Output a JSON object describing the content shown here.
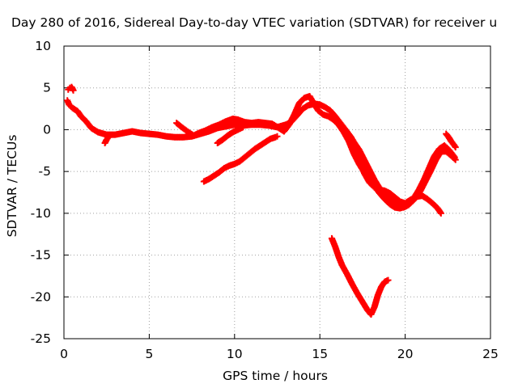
{
  "chart_data": {
    "type": "scatter",
    "title": "Day 280 of 2016, Sidereal Day-to-day VTEC variation (SDTVAR) for receiver u",
    "xlabel": "GPS time / hours",
    "ylabel": "SDTVAR / TECUs",
    "xlim": [
      0,
      25
    ],
    "ylim": [
      -25,
      10
    ],
    "grid": true,
    "xticks": [
      0,
      5,
      10,
      15,
      20,
      25
    ],
    "yticks": [
      10,
      5,
      0,
      -5,
      -10,
      -15,
      -20,
      -25
    ],
    "marker_color": "#ff0000",
    "series": [
      {
        "name": "main-track",
        "points": [
          [
            0.2,
            3.5
          ],
          [
            0.3,
            3.0
          ],
          [
            0.5,
            2.6
          ],
          [
            0.8,
            2.2
          ],
          [
            1.0,
            1.6
          ],
          [
            1.3,
            1.0
          ],
          [
            1.6,
            0.2
          ],
          [
            2.0,
            -0.3
          ],
          [
            2.5,
            -0.6
          ],
          [
            3.0,
            -0.6
          ],
          [
            3.5,
            -0.4
          ],
          [
            4.0,
            -0.2
          ],
          [
            4.5,
            -0.4
          ],
          [
            5.0,
            -0.5
          ],
          [
            5.5,
            -0.6
          ],
          [
            6.0,
            -0.8
          ],
          [
            6.5,
            -0.9
          ],
          [
            7.0,
            -0.9
          ],
          [
            7.5,
            -0.8
          ],
          [
            8.0,
            -0.5
          ],
          [
            8.5,
            -0.2
          ],
          [
            9.0,
            0.2
          ],
          [
            9.5,
            0.4
          ],
          [
            10.0,
            0.6
          ],
          [
            10.5,
            0.5
          ],
          [
            11.0,
            0.6
          ],
          [
            11.5,
            0.6
          ],
          [
            12.0,
            0.5
          ],
          [
            12.5,
            0.3
          ],
          [
            13.0,
            0.6
          ],
          [
            13.3,
            0.9
          ],
          [
            13.7,
            1.8
          ],
          [
            14.0,
            2.5
          ],
          [
            14.3,
            2.9
          ],
          [
            14.7,
            3.1
          ],
          [
            15.0,
            3.0
          ],
          [
            15.3,
            2.7
          ],
          [
            15.6,
            2.3
          ],
          [
            15.9,
            1.6
          ],
          [
            16.2,
            0.8
          ],
          [
            16.5,
            0.0
          ],
          [
            16.8,
            -0.8
          ],
          [
            17.0,
            -1.5
          ],
          [
            17.3,
            -2.4
          ],
          [
            17.6,
            -3.6
          ],
          [
            17.9,
            -4.8
          ],
          [
            18.2,
            -6.0
          ],
          [
            18.5,
            -7.0
          ],
          [
            18.8,
            -7.8
          ],
          [
            19.1,
            -8.3
          ],
          [
            19.4,
            -8.8
          ],
          [
            19.7,
            -9.2
          ],
          [
            19.9,
            -9.3
          ],
          [
            20.2,
            -9.0
          ],
          [
            20.5,
            -8.2
          ],
          [
            20.8,
            -7.2
          ],
          [
            21.1,
            -6.0
          ],
          [
            21.4,
            -4.6
          ],
          [
            21.7,
            -3.2
          ],
          [
            22.0,
            -2.3
          ],
          [
            22.3,
            -1.9
          ],
          [
            22.6,
            -2.5
          ],
          [
            22.9,
            -3.3
          ]
        ]
      },
      {
        "name": "upper-loop",
        "points": [
          [
            12.6,
            0.2
          ],
          [
            12.9,
            -0.2
          ],
          [
            13.2,
            0.6
          ],
          [
            13.5,
            1.8
          ],
          [
            13.8,
            3.2
          ],
          [
            14.1,
            3.8
          ],
          [
            14.4,
            4.0
          ],
          [
            14.6,
            3.3
          ],
          [
            14.9,
            2.3
          ],
          [
            15.2,
            1.8
          ],
          [
            15.5,
            1.6
          ],
          [
            15.8,
            1.2
          ],
          [
            16.1,
            0.6
          ],
          [
            16.4,
            -0.3
          ],
          [
            16.7,
            -1.4
          ],
          [
            17.0,
            -2.9
          ],
          [
            17.3,
            -4.1
          ],
          [
            17.6,
            -5.1
          ],
          [
            17.9,
            -6.1
          ],
          [
            18.2,
            -6.8
          ],
          [
            18.5,
            -7.6
          ],
          [
            18.8,
            -8.3
          ],
          [
            19.1,
            -8.9
          ],
          [
            19.4,
            -9.3
          ],
          [
            19.7,
            -9.4
          ],
          [
            20.0,
            -9.2
          ],
          [
            20.3,
            -8.8
          ],
          [
            20.6,
            -8.2
          ],
          [
            20.9,
            -7.3
          ],
          [
            21.2,
            -6.1
          ],
          [
            21.5,
            -4.9
          ],
          [
            21.8,
            -3.6
          ],
          [
            22.1,
            -2.6
          ],
          [
            22.4,
            -2.6
          ],
          [
            22.7,
            -3.1
          ],
          [
            22.95,
            -3.6
          ]
        ]
      },
      {
        "name": "dip-branch",
        "points": [
          [
            17.0,
            -1.7
          ],
          [
            17.2,
            -2.9
          ],
          [
            17.4,
            -3.9
          ],
          [
            17.6,
            -5.2
          ],
          [
            17.9,
            -6.3
          ],
          [
            18.2,
            -6.9
          ],
          [
            18.5,
            -7.2
          ],
          [
            18.8,
            -7.3
          ],
          [
            19.1,
            -7.6
          ],
          [
            19.4,
            -8.1
          ],
          [
            19.7,
            -8.6
          ],
          [
            20.0,
            -8.8
          ],
          [
            20.3,
            -8.4
          ],
          [
            20.7,
            -8.0
          ],
          [
            21.0,
            -7.9
          ],
          [
            21.3,
            -8.3
          ],
          [
            21.6,
            -8.8
          ],
          [
            21.9,
            -9.4
          ],
          [
            22.1,
            -10.0
          ]
        ]
      },
      {
        "name": "right-spike",
        "points": [
          [
            22.4,
            -0.5
          ],
          [
            22.55,
            -0.9
          ],
          [
            22.7,
            -1.4
          ],
          [
            22.85,
            -1.8
          ],
          [
            22.95,
            -2.1
          ]
        ]
      },
      {
        "name": "left-spike",
        "points": [
          [
            0.25,
            4.8
          ],
          [
            0.35,
            5.0
          ],
          [
            0.45,
            5.1
          ],
          [
            0.55,
            4.7
          ]
        ]
      },
      {
        "name": "low-tail",
        "points": [
          [
            2.4,
            -1.6
          ],
          [
            2.5,
            -1.2
          ],
          [
            2.6,
            -0.9
          ]
        ]
      },
      {
        "name": "midday-noise",
        "points": [
          [
            6.6,
            0.8
          ],
          [
            6.9,
            0.3
          ],
          [
            7.3,
            -0.3
          ],
          [
            7.6,
            -0.7
          ],
          [
            7.9,
            -0.4
          ],
          [
            8.3,
            -0.1
          ],
          [
            8.7,
            0.3
          ],
          [
            9.1,
            0.6
          ],
          [
            9.5,
            1.0
          ],
          [
            9.9,
            1.3
          ],
          [
            10.2,
            1.2
          ],
          [
            10.6,
            0.9
          ],
          [
            11.0,
            0.8
          ],
          [
            11.4,
            0.9
          ],
          [
            11.8,
            0.8
          ],
          [
            12.2,
            0.7
          ],
          [
            12.6,
            0.2
          ]
        ]
      },
      {
        "name": "rising-segment",
        "points": [
          [
            8.2,
            -6.2
          ],
          [
            8.5,
            -5.9
          ],
          [
            8.8,
            -5.5
          ],
          [
            9.1,
            -5.1
          ],
          [
            9.4,
            -4.6
          ],
          [
            9.7,
            -4.3
          ],
          [
            10.0,
            -4.1
          ],
          [
            10.3,
            -3.8
          ],
          [
            10.6,
            -3.3
          ],
          [
            10.9,
            -2.8
          ],
          [
            11.2,
            -2.3
          ],
          [
            11.5,
            -1.9
          ],
          [
            11.8,
            -1.5
          ],
          [
            12.1,
            -1.1
          ],
          [
            12.4,
            -0.9
          ],
          [
            12.5,
            -0.8
          ]
        ]
      },
      {
        "name": "short-segment",
        "points": [
          [
            9.0,
            -1.6
          ],
          [
            9.3,
            -1.2
          ],
          [
            9.6,
            -0.7
          ],
          [
            9.9,
            -0.3
          ],
          [
            10.2,
            0.0
          ],
          [
            10.5,
            0.3
          ]
        ]
      },
      {
        "name": "deep-dip",
        "points": [
          [
            15.7,
            -13.0
          ],
          [
            15.9,
            -14.0
          ],
          [
            16.1,
            -15.2
          ],
          [
            16.3,
            -16.2
          ],
          [
            16.6,
            -17.3
          ],
          [
            16.9,
            -18.5
          ],
          [
            17.2,
            -19.6
          ],
          [
            17.5,
            -20.6
          ],
          [
            17.8,
            -21.6
          ],
          [
            18.0,
            -22.1
          ],
          [
            18.2,
            -21.2
          ],
          [
            18.4,
            -19.8
          ],
          [
            18.6,
            -18.8
          ],
          [
            18.8,
            -18.2
          ],
          [
            19.0,
            -18.0
          ]
        ]
      }
    ]
  }
}
